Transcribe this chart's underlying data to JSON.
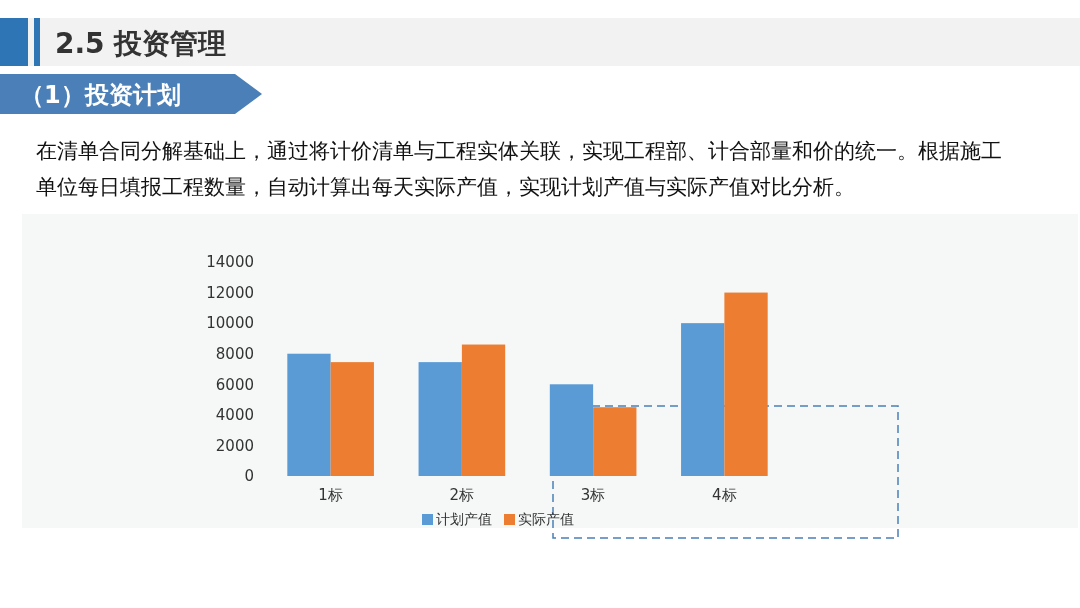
{
  "chart_data": {
    "type": "bar",
    "title": "2.5 投资管理",
    "subtitle": "（1）投资计划",
    "annotations": [
      "在清单合同分解基础上，通过将计价清单与工程实体关联，实现工程部、计合部量和价的统一。根据施工单位每日填报工程数量，自动计算出每天实际产值，实现计划产值与实际产值对比分析。"
    ],
    "categories": [
      "1标",
      "2标",
      "3标",
      "4标"
    ],
    "series": [
      {
        "name": "计划产值",
        "color": "#5b9bd5",
        "values": [
          8000,
          7450,
          6000,
          10000
        ]
      },
      {
        "name": "实际产值",
        "color": "#ed7d31",
        "values": [
          7450,
          8600,
          4500,
          12000
        ]
      }
    ],
    "ylim": [
      0,
      14000
    ],
    "yticks": [
      0,
      2000,
      4000,
      6000,
      8000,
      10000,
      12000,
      14000
    ],
    "grid": false,
    "legend": "bottom"
  }
}
